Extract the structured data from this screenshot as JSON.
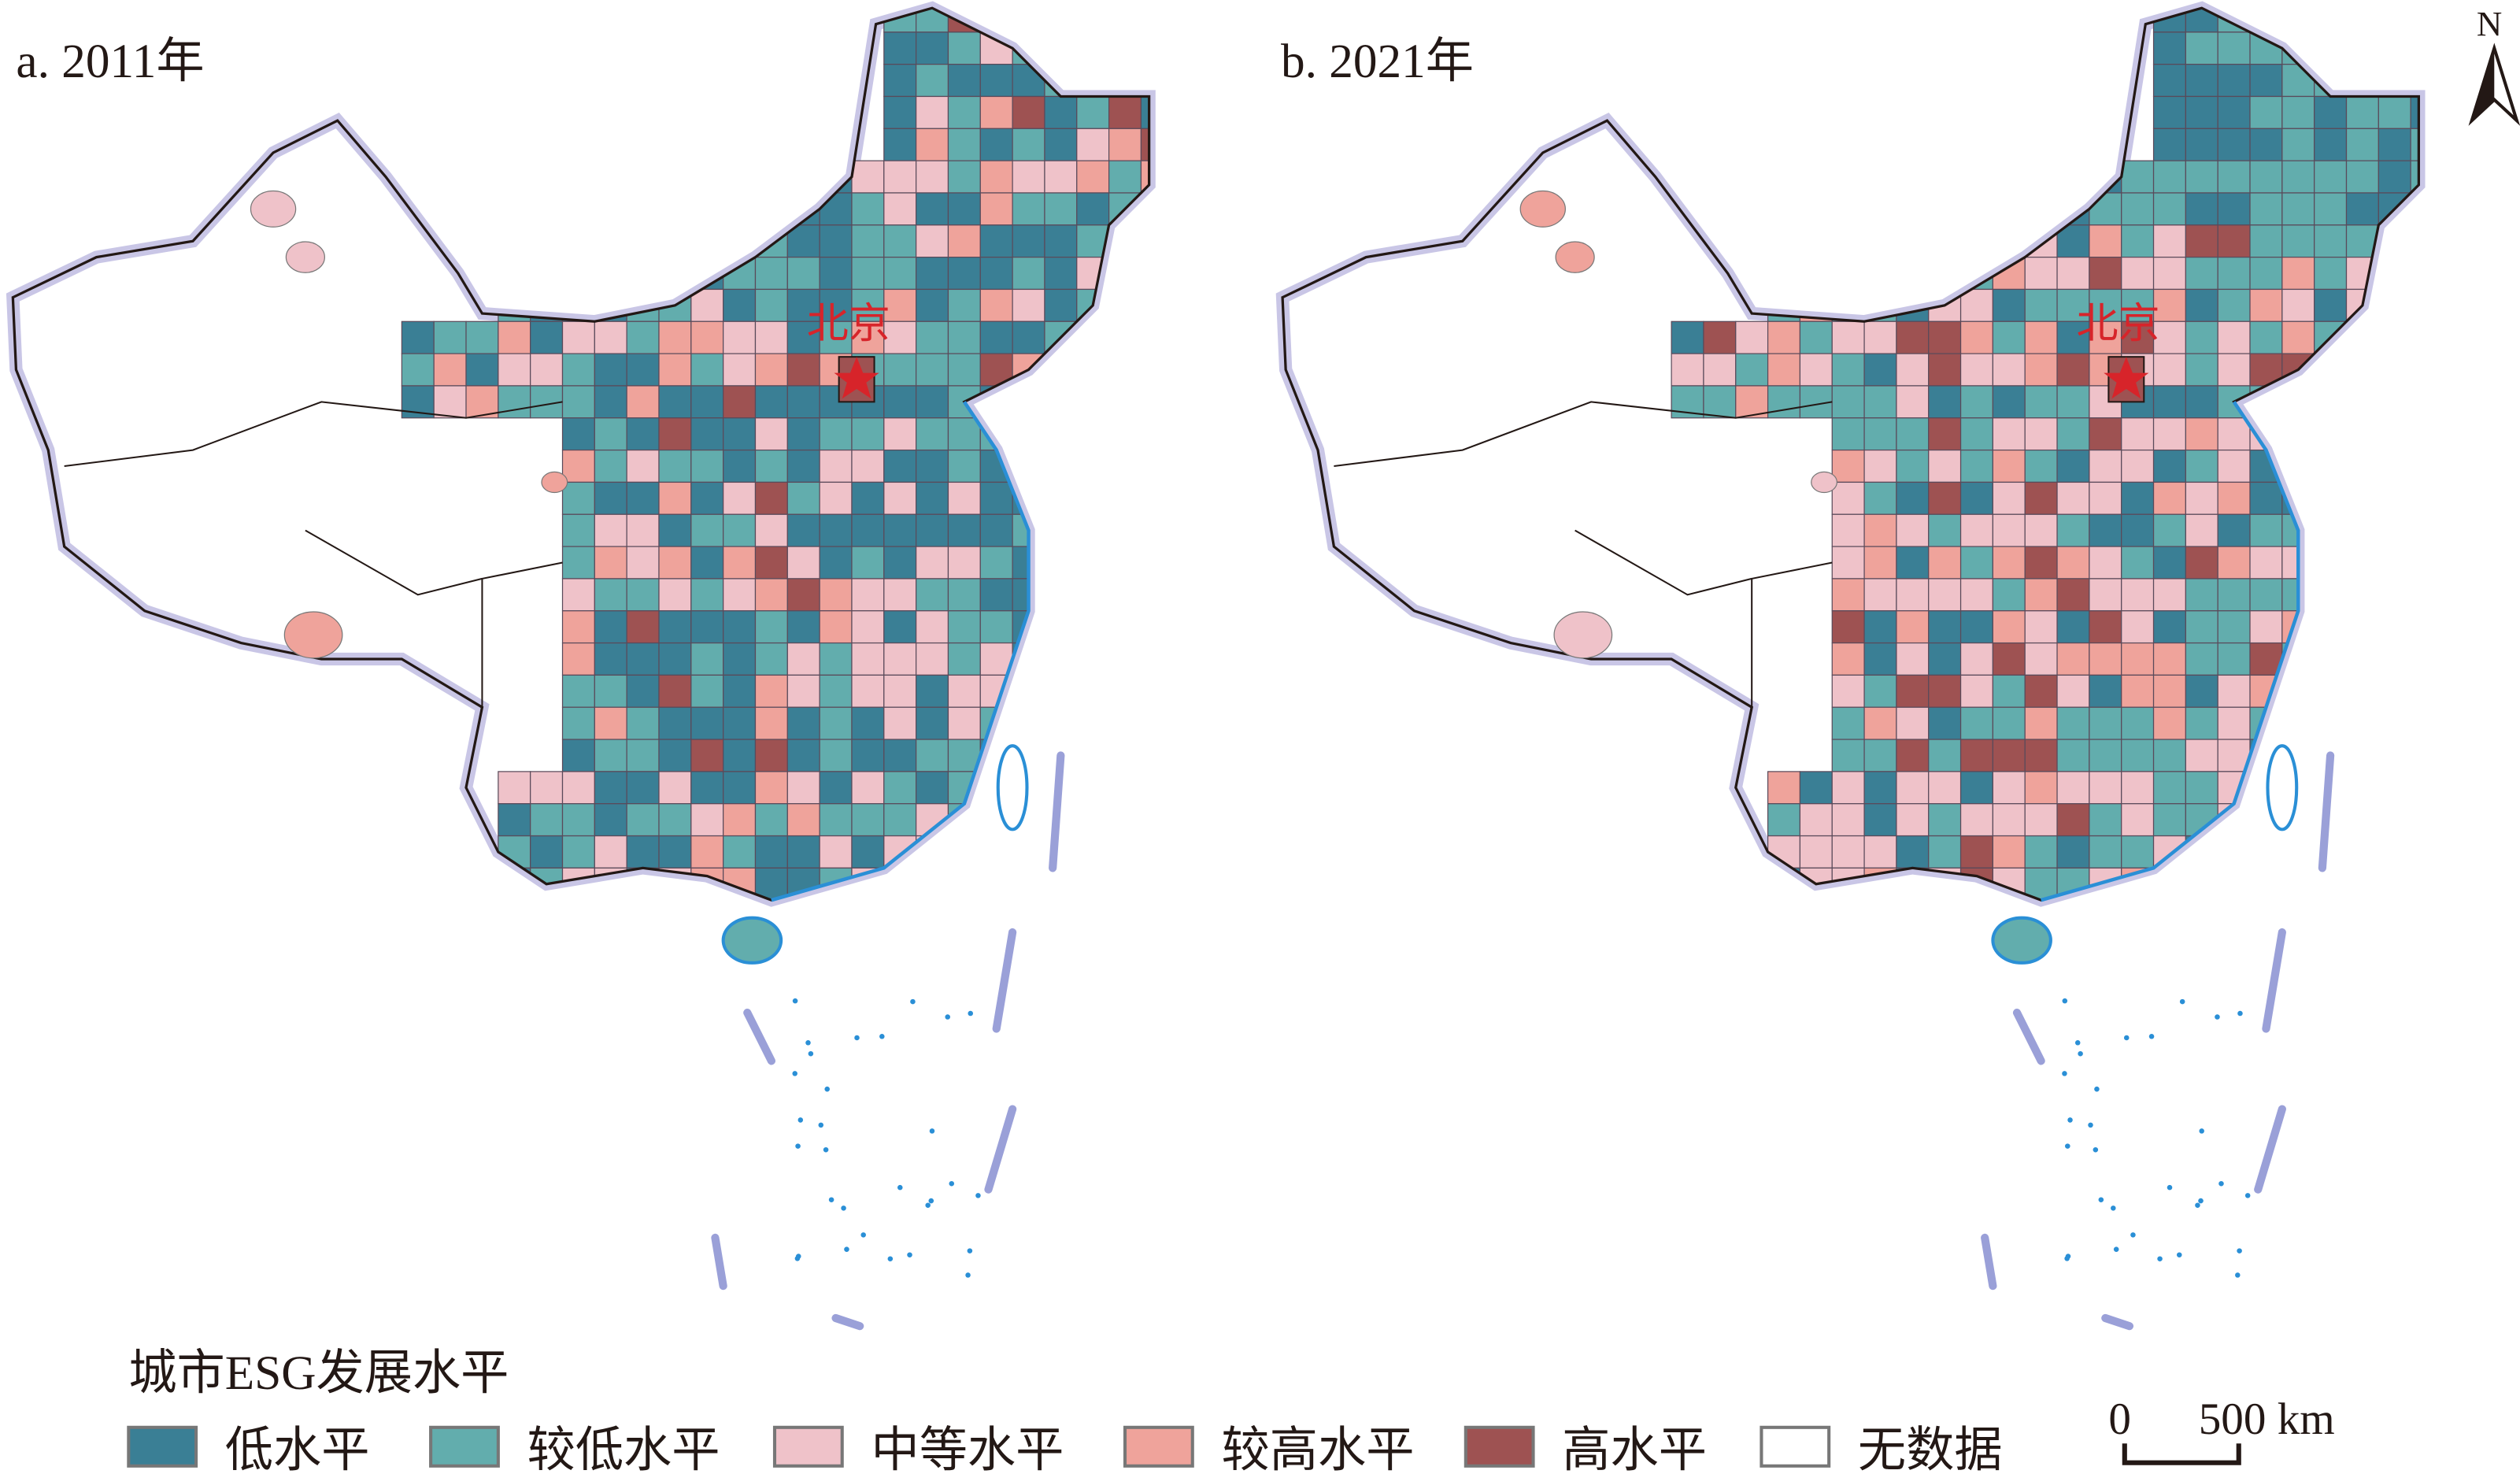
{
  "maps": [
    {
      "label": "a. 2011年",
      "capital": "北京",
      "bias": 0.0
    },
    {
      "label": "b. 2021年",
      "capital": "北京",
      "bias": 1.0
    }
  ],
  "legend": {
    "title": "城市ESG发展水平",
    "items": [
      {
        "label": "低水平",
        "color": "#3a7f95"
      },
      {
        "label": "较低水平",
        "color": "#62adad"
      },
      {
        "label": "中等水平",
        "color": "#efc2c9"
      },
      {
        "label": "较高水平",
        "color": "#efa39b"
      },
      {
        "label": "高水平",
        "color": "#9e5252"
      },
      {
        "label": "无数据",
        "color": "#ffffff"
      }
    ]
  },
  "scale_bar": {
    "zero": "0",
    "value": "500 km"
  },
  "north_arrow": {
    "label": "N"
  },
  "colors": {
    "capital": "#d7242a",
    "coast": "#2a8fd6",
    "border_glow": "#c9c6e6"
  }
}
